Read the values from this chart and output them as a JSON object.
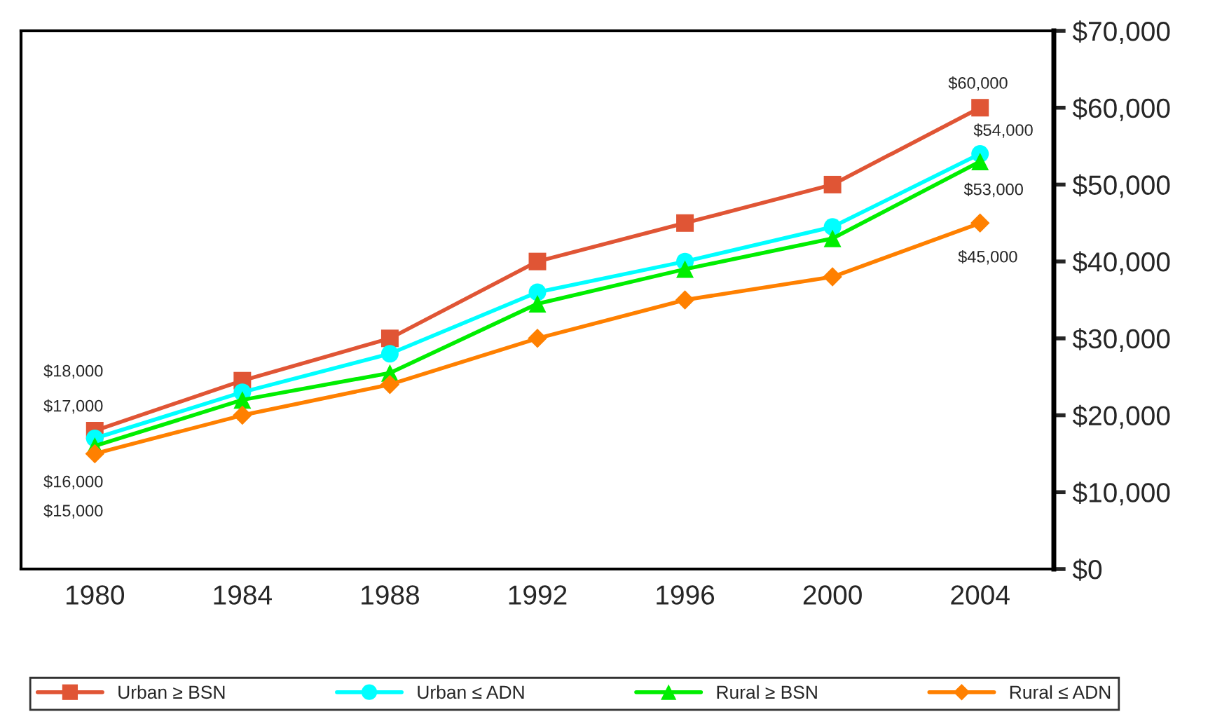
{
  "chart_data": {
    "type": "line",
    "categories": [
      "1980",
      "1984",
      "1988",
      "1992",
      "1996",
      "2000",
      "2004"
    ],
    "series": [
      {
        "name": "Urban ≥ BSN",
        "color": "#e05535",
        "marker": "square",
        "values": [
          18000,
          24500,
          30000,
          40000,
          45000,
          50000,
          60000
        ],
        "value_labels": [
          "$18,000",
          null,
          null,
          null,
          null,
          null,
          "$60,000"
        ]
      },
      {
        "name": "Urban ≤ ADN",
        "color": "#00ffff",
        "marker": "circle",
        "values": [
          17000,
          23000,
          28000,
          36000,
          40000,
          44500,
          54000
        ],
        "value_labels": [
          "$17,000",
          null,
          null,
          null,
          null,
          null,
          "$54,000"
        ]
      },
      {
        "name": "Rural ≥ BSN",
        "color": "#00ee00",
        "marker": "triangle",
        "values": [
          16000,
          22000,
          25500,
          34500,
          39000,
          43000,
          53000
        ],
        "value_labels": [
          "$16,000",
          null,
          null,
          null,
          null,
          null,
          "$53,000"
        ]
      },
      {
        "name": "Rural ≤ ADN",
        "color": "#ff8000",
        "marker": "diamond",
        "values": [
          15000,
          20000,
          24000,
          30000,
          35000,
          38000,
          45000
        ],
        "value_labels": [
          "$15,000",
          null,
          null,
          null,
          null,
          null,
          "$45,000"
        ]
      }
    ],
    "ylim": [
      0,
      70000
    ],
    "yticks": [
      {
        "value": 0,
        "label": "$0"
      },
      {
        "value": 10000,
        "label": "$10,000"
      },
      {
        "value": 20000,
        "label": "$20,000"
      },
      {
        "value": 30000,
        "label": "$30,000"
      },
      {
        "value": 40000,
        "label": "$40,000"
      },
      {
        "value": 50000,
        "label": "$50,000"
      },
      {
        "value": 60000,
        "label": "$60,000"
      },
      {
        "value": 70000,
        "label": "$70,000"
      }
    ],
    "grid": false,
    "legend": "bottom",
    "line_style": "solid"
  }
}
